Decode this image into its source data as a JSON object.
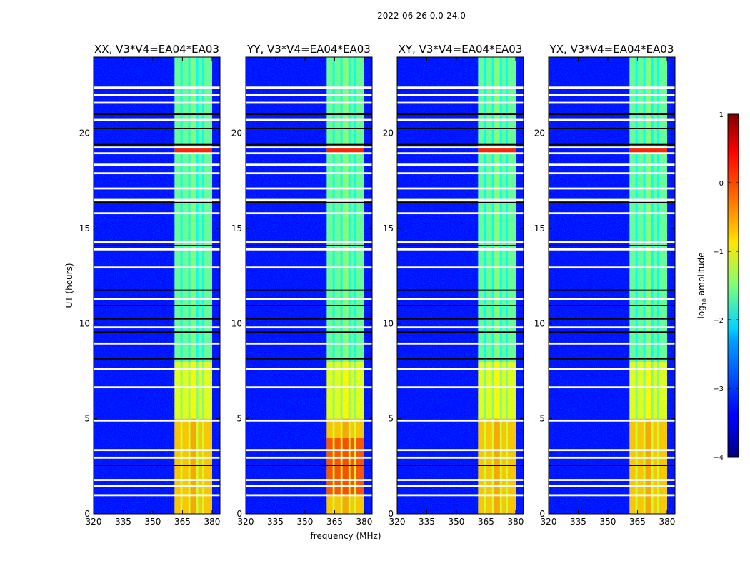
{
  "chart_data": {
    "type": "heatmap",
    "suptitle": "2022-06-26 0.0-24.0",
    "xlabel": "frequency (MHz)",
    "ylabel": "UT (hours)",
    "xlim": [
      320,
      384
    ],
    "ylim": [
      0,
      24
    ],
    "xticks": [
      "320",
      "335",
      "350",
      "365",
      "380"
    ],
    "xtick_values": [
      320,
      335,
      350,
      365,
      380
    ],
    "yticks": [
      "0",
      "5",
      "10",
      "15",
      "20"
    ],
    "ytick_values": [
      0,
      5,
      10,
      15,
      20
    ],
    "panels": [
      {
        "title": "XX, V3*V4=EA04*EA03",
        "pol": "XX"
      },
      {
        "title": "YY, V3*V4=EA04*EA03",
        "pol": "YY"
      },
      {
        "title": "XY, V3*V4=EA04*EA03",
        "pol": "XY"
      },
      {
        "title": "YX, V3*V4=EA04*EA03",
        "pol": "YX"
      }
    ],
    "band_mhz": [
      361,
      380
    ],
    "band_strips": [
      {
        "range": [
          361,
          364
        ],
        "level": "bright"
      },
      {
        "range": [
          365,
          368
        ],
        "level": "bright"
      },
      {
        "range": [
          369,
          372
        ],
        "level": "bright"
      },
      {
        "range": [
          373,
          375
        ],
        "level": "bright"
      },
      {
        "range": [
          376,
          380
        ],
        "level": "bright"
      }
    ],
    "background_log_amp": -3.3,
    "band_log_amp": {
      "hours_0_5": -0.6,
      "hours_5_8": -1.0,
      "hours_8_24": -1.6,
      "flare_hour_19": 0.2
    },
    "flagged_white_hours": [
      0.98,
      1.45,
      1.78,
      2.95,
      3.35,
      4.9,
      6.65,
      7.6,
      8.95,
      9.8,
      11.3,
      12.95,
      13.9,
      14.3,
      15.8,
      16.5,
      17.1,
      17.9,
      18.35,
      18.95,
      19.25,
      20.7,
      21.6,
      22.0,
      22.4
    ],
    "flagged_black_hours": [
      2.55,
      8.15,
      9.55,
      10.25,
      10.95,
      11.75,
      14.1,
      16.35,
      19.4,
      20.25,
      21.0
    ],
    "colorbar": {
      "label": "log10 amplitude",
      "label_main": "log",
      "label_sub": "10",
      "label_rest": " amplitude",
      "range": [
        -4,
        1
      ],
      "ticks": [
        "1",
        "0",
        "−1",
        "−2",
        "−3",
        "−4"
      ],
      "tick_values": [
        1,
        0,
        -1,
        -2,
        -3,
        -4
      ],
      "colormap": "jet"
    }
  }
}
